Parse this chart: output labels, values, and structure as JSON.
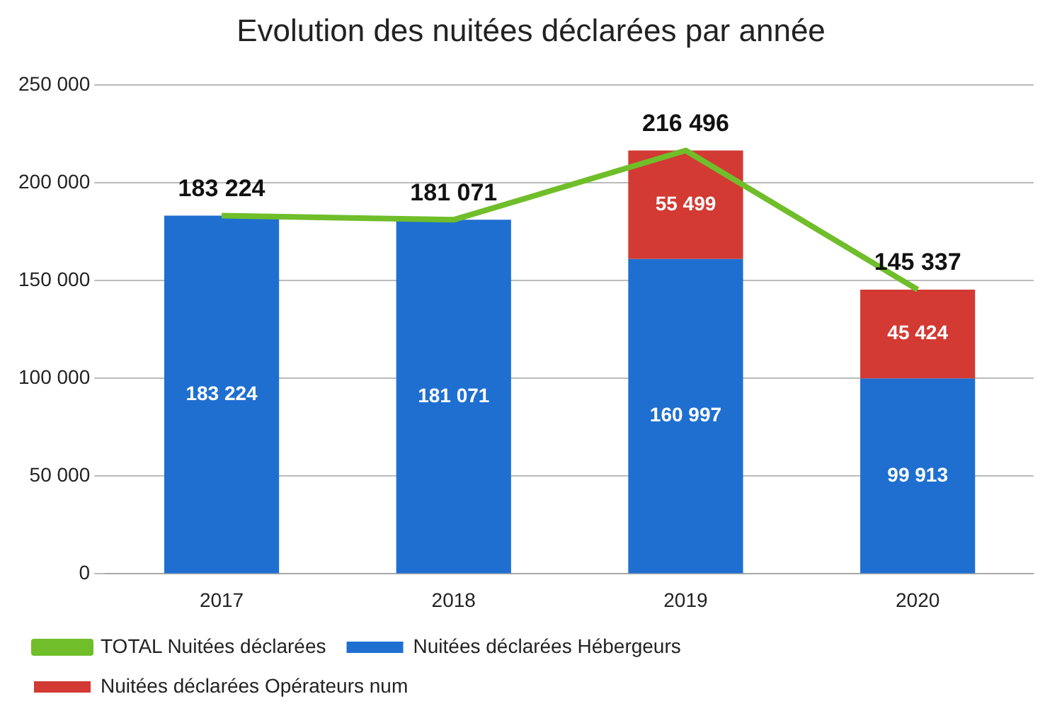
{
  "chart_data": {
    "type": "bar",
    "title": "Evolution des nuitées déclarées par année",
    "categories": [
      "2017",
      "2018",
      "2019",
      "2020"
    ],
    "stacked": true,
    "data_labels": true,
    "grid": "y",
    "legend": "bottom",
    "marker": "none",
    "ylim": [
      0,
      250000
    ],
    "yticks": [
      {
        "value": 0,
        "label": "0"
      },
      {
        "value": 50000,
        "label": "50 000"
      },
      {
        "value": 100000,
        "label": "100 000"
      },
      {
        "value": 150000,
        "label": "150 000"
      },
      {
        "value": 200000,
        "label": "200 000"
      },
      {
        "value": 250000,
        "label": "250 000"
      }
    ],
    "series": [
      {
        "name": "Nuitées déclarées Hébergeurs",
        "color": "#1f6fd1",
        "values": [
          183224,
          181071,
          160997,
          99913
        ]
      },
      {
        "name": "Nuitées déclarées Opérateurs num",
        "color": "#d23a33",
        "values": [
          null,
          null,
          55499,
          45424
        ]
      },
      {
        "name": "TOTAL Nuitées déclarées",
        "type": "line",
        "color": "#6fbe2a",
        "values": [
          183224,
          181071,
          216496,
          145337
        ]
      }
    ]
  }
}
